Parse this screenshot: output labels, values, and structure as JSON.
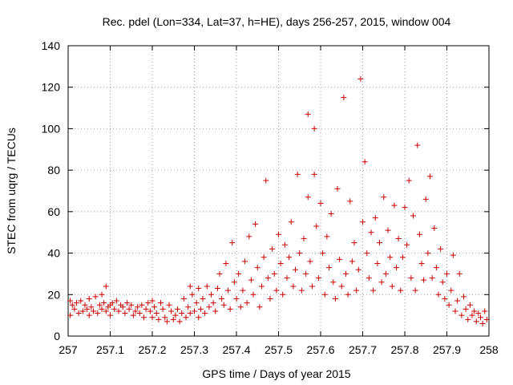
{
  "chart_data": {
    "type": "scatter",
    "title": "Rec. pdel (Lon=334, Lat=37, h=HE), days 256-257, 2015, window 004",
    "xlabel": "GPS time / Days of year 2015",
    "ylabel": "STEC from uqrg / TECUs",
    "xlim": [
      257,
      258
    ],
    "ylim": [
      0,
      140
    ],
    "xticks": [
      "257",
      "257.1",
      "257.2",
      "257.3",
      "257.4",
      "257.5",
      "257.6",
      "257.7",
      "257.8",
      "257.9",
      "258"
    ],
    "yticks": [
      "0",
      "20",
      "40",
      "60",
      "80",
      "100",
      "120",
      "140"
    ],
    "grid": true,
    "marker": "plus",
    "color": "#cc0000",
    "series": [
      {
        "points": [
          [
            257.005,
            17
          ],
          [
            257.005,
            10
          ],
          [
            257.01,
            15
          ],
          [
            257.015,
            13
          ],
          [
            257.02,
            16
          ],
          [
            257.025,
            11
          ],
          [
            257.03,
            17
          ],
          [
            257.035,
            12
          ],
          [
            257.04,
            15
          ],
          [
            257.045,
            13
          ],
          [
            257.05,
            18
          ],
          [
            257.05,
            10
          ],
          [
            257.055,
            14
          ],
          [
            257.06,
            12
          ],
          [
            257.065,
            19
          ],
          [
            257.07,
            11
          ],
          [
            257.075,
            15
          ],
          [
            257.08,
            20
          ],
          [
            257.08,
            13
          ],
          [
            257.085,
            16
          ],
          [
            257.09,
            24
          ],
          [
            257.09,
            12
          ],
          [
            257.095,
            14
          ],
          [
            257.1,
            15
          ],
          [
            257.1,
            10
          ],
          [
            257.105,
            16
          ],
          [
            257.11,
            13
          ],
          [
            257.115,
            17
          ],
          [
            257.12,
            12
          ],
          [
            257.125,
            15
          ],
          [
            257.13,
            14
          ],
          [
            257.135,
            11
          ],
          [
            257.14,
            16
          ],
          [
            257.145,
            13
          ],
          [
            257.15,
            15
          ],
          [
            257.155,
            10
          ],
          [
            257.16,
            12
          ],
          [
            257.165,
            14
          ],
          [
            257.17,
            11
          ],
          [
            257.175,
            15
          ],
          [
            257.18,
            9
          ],
          [
            257.185,
            13
          ],
          [
            257.19,
            16
          ],
          [
            257.195,
            12
          ],
          [
            257.2,
            17
          ],
          [
            257.2,
            9
          ],
          [
            257.205,
            14
          ],
          [
            257.21,
            11
          ],
          [
            257.215,
            8
          ],
          [
            257.22,
            16
          ],
          [
            257.225,
            13
          ],
          [
            257.23,
            9
          ],
          [
            257.235,
            7
          ],
          [
            257.24,
            15
          ],
          [
            257.245,
            12
          ],
          [
            257.25,
            8
          ],
          [
            257.255,
            10
          ],
          [
            257.26,
            13
          ],
          [
            257.265,
            7
          ],
          [
            257.27,
            11
          ],
          [
            257.275,
            18
          ],
          [
            257.28,
            9
          ],
          [
            257.285,
            14
          ],
          [
            257.29,
            24
          ],
          [
            257.29,
            11
          ],
          [
            257.295,
            20
          ],
          [
            257.3,
            12
          ],
          [
            257.305,
            16
          ],
          [
            257.31,
            23
          ],
          [
            257.31,
            9
          ],
          [
            257.315,
            13
          ],
          [
            257.32,
            18
          ],
          [
            257.325,
            11
          ],
          [
            257.33,
            24
          ],
          [
            257.335,
            14
          ],
          [
            257.34,
            20
          ],
          [
            257.345,
            16
          ],
          [
            257.35,
            12
          ],
          [
            257.355,
            23
          ],
          [
            257.36,
            30
          ],
          [
            257.365,
            18
          ],
          [
            257.37,
            15
          ],
          [
            257.375,
            35
          ],
          [
            257.38,
            22
          ],
          [
            257.385,
            13
          ],
          [
            257.39,
            45
          ],
          [
            257.395,
            26
          ],
          [
            257.4,
            18
          ],
          [
            257.405,
            30
          ],
          [
            257.41,
            14
          ],
          [
            257.415,
            22
          ],
          [
            257.42,
            36
          ],
          [
            257.425,
            16
          ],
          [
            257.43,
            48
          ],
          [
            257.435,
            27
          ],
          [
            257.44,
            20
          ],
          [
            257.445,
            54
          ],
          [
            257.45,
            33
          ],
          [
            257.455,
            14
          ],
          [
            257.46,
            24
          ],
          [
            257.465,
            38
          ],
          [
            257.47,
            75
          ],
          [
            257.475,
            28
          ],
          [
            257.48,
            18
          ],
          [
            257.485,
            42
          ],
          [
            257.49,
            30
          ],
          [
            257.495,
            22
          ],
          [
            257.5,
            49
          ],
          [
            257.505,
            35
          ],
          [
            257.51,
            20
          ],
          [
            257.515,
            44
          ],
          [
            257.52,
            28
          ],
          [
            257.525,
            38
          ],
          [
            257.53,
            55
          ],
          [
            257.535,
            24
          ],
          [
            257.54,
            32
          ],
          [
            257.545,
            78
          ],
          [
            257.55,
            40
          ],
          [
            257.555,
            22
          ],
          [
            257.56,
            47
          ],
          [
            257.565,
            30
          ],
          [
            257.57,
            107
          ],
          [
            257.57,
            67
          ],
          [
            257.575,
            36
          ],
          [
            257.58,
            24
          ],
          [
            257.585,
            100
          ],
          [
            257.585,
            78
          ],
          [
            257.59,
            53
          ],
          [
            257.595,
            28
          ],
          [
            257.6,
            64
          ],
          [
            257.605,
            40
          ],
          [
            257.61,
            20
          ],
          [
            257.615,
            48
          ],
          [
            257.62,
            33
          ],
          [
            257.625,
            59
          ],
          [
            257.63,
            26
          ],
          [
            257.635,
            18
          ],
          [
            257.64,
            71
          ],
          [
            257.645,
            37
          ],
          [
            257.65,
            24
          ],
          [
            257.655,
            115
          ],
          [
            257.66,
            30
          ],
          [
            257.665,
            20
          ],
          [
            257.67,
            65
          ],
          [
            257.675,
            36
          ],
          [
            257.68,
            45
          ],
          [
            257.685,
            22
          ],
          [
            257.69,
            32
          ],
          [
            257.695,
            124
          ],
          [
            257.7,
            55
          ],
          [
            257.705,
            84
          ],
          [
            257.71,
            40
          ],
          [
            257.715,
            28
          ],
          [
            257.72,
            50
          ],
          [
            257.725,
            22
          ],
          [
            257.73,
            57
          ],
          [
            257.735,
            35
          ],
          [
            257.74,
            45
          ],
          [
            257.745,
            26
          ],
          [
            257.75,
            67
          ],
          [
            257.755,
            30
          ],
          [
            257.76,
            51
          ],
          [
            257.765,
            38
          ],
          [
            257.77,
            24
          ],
          [
            257.775,
            63
          ],
          [
            257.78,
            33
          ],
          [
            257.785,
            47
          ],
          [
            257.79,
            22
          ],
          [
            257.795,
            38
          ],
          [
            257.8,
            62
          ],
          [
            257.805,
            44
          ],
          [
            257.81,
            75
          ],
          [
            257.815,
            28
          ],
          [
            257.82,
            58
          ],
          [
            257.825,
            22
          ],
          [
            257.83,
            92
          ],
          [
            257.835,
            49
          ],
          [
            257.84,
            35
          ],
          [
            257.845,
            27
          ],
          [
            257.85,
            66
          ],
          [
            257.855,
            40
          ],
          [
            257.86,
            77
          ],
          [
            257.865,
            28
          ],
          [
            257.87,
            52
          ],
          [
            257.875,
            33
          ],
          [
            257.88,
            20
          ],
          [
            257.885,
            42
          ],
          [
            257.89,
            26
          ],
          [
            257.895,
            18
          ],
          [
            257.9,
            30
          ],
          [
            257.905,
            15
          ],
          [
            257.91,
            22
          ],
          [
            257.915,
            39
          ],
          [
            257.92,
            12
          ],
          [
            257.925,
            17
          ],
          [
            257.93,
            30
          ],
          [
            257.935,
            10
          ],
          [
            257.94,
            19
          ],
          [
            257.945,
            13
          ],
          [
            257.95,
            8
          ],
          [
            257.955,
            15
          ],
          [
            257.96,
            10
          ],
          [
            257.965,
            12
          ],
          [
            257.97,
            7
          ],
          [
            257.975,
            11
          ],
          [
            257.98,
            9
          ],
          [
            257.985,
            6
          ],
          [
            257.99,
            12
          ],
          [
            257.995,
            8
          ]
        ]
      }
    ]
  }
}
